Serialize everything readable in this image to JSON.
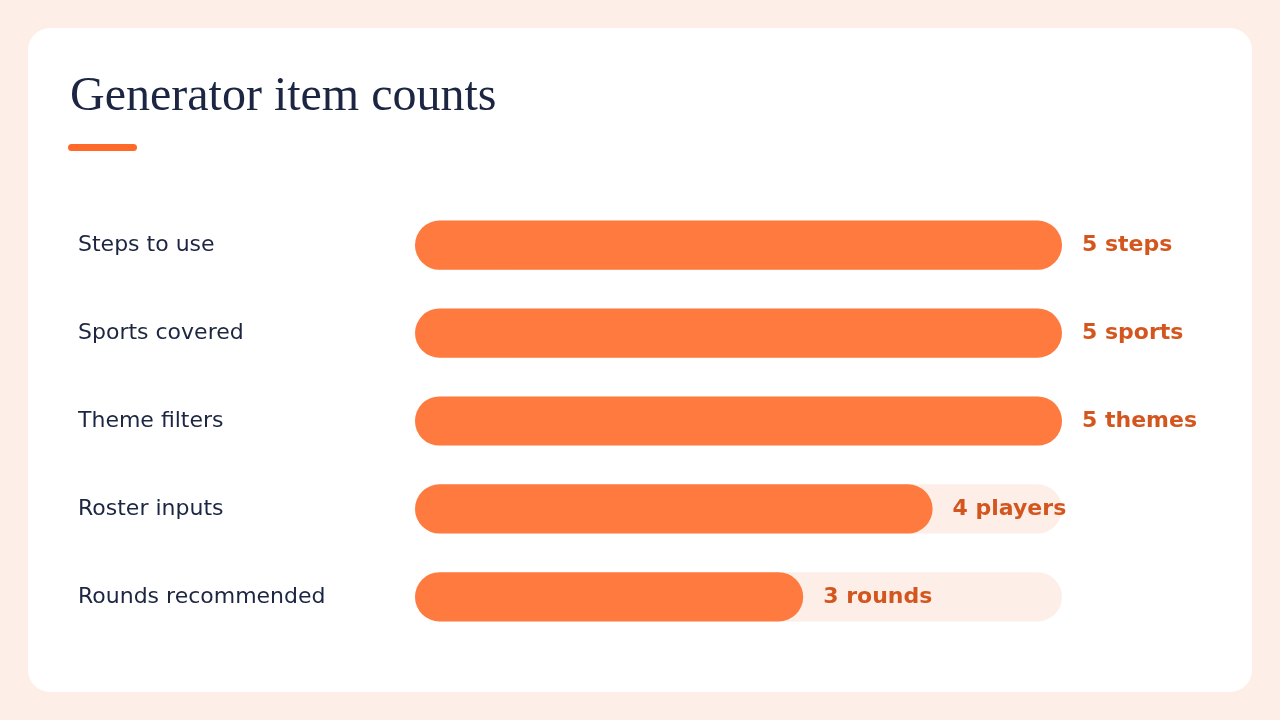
{
  "chart_data": {
    "type": "bar",
    "orientation": "horizontal",
    "title": "Generator item counts",
    "categories": [
      "Steps to use",
      "Sports covered",
      "Theme filters",
      "Roster inputs",
      "Rounds recommended"
    ],
    "values": [
      5,
      5,
      5,
      4,
      3
    ],
    "value_labels": [
      "5 steps",
      "5 sports",
      "5 themes",
      "4 players",
      "3 rounds"
    ],
    "color": "#ff7a3f",
    "xlim": [
      0,
      5
    ],
    "tick_labels": "y",
    "legend": false
  }
}
